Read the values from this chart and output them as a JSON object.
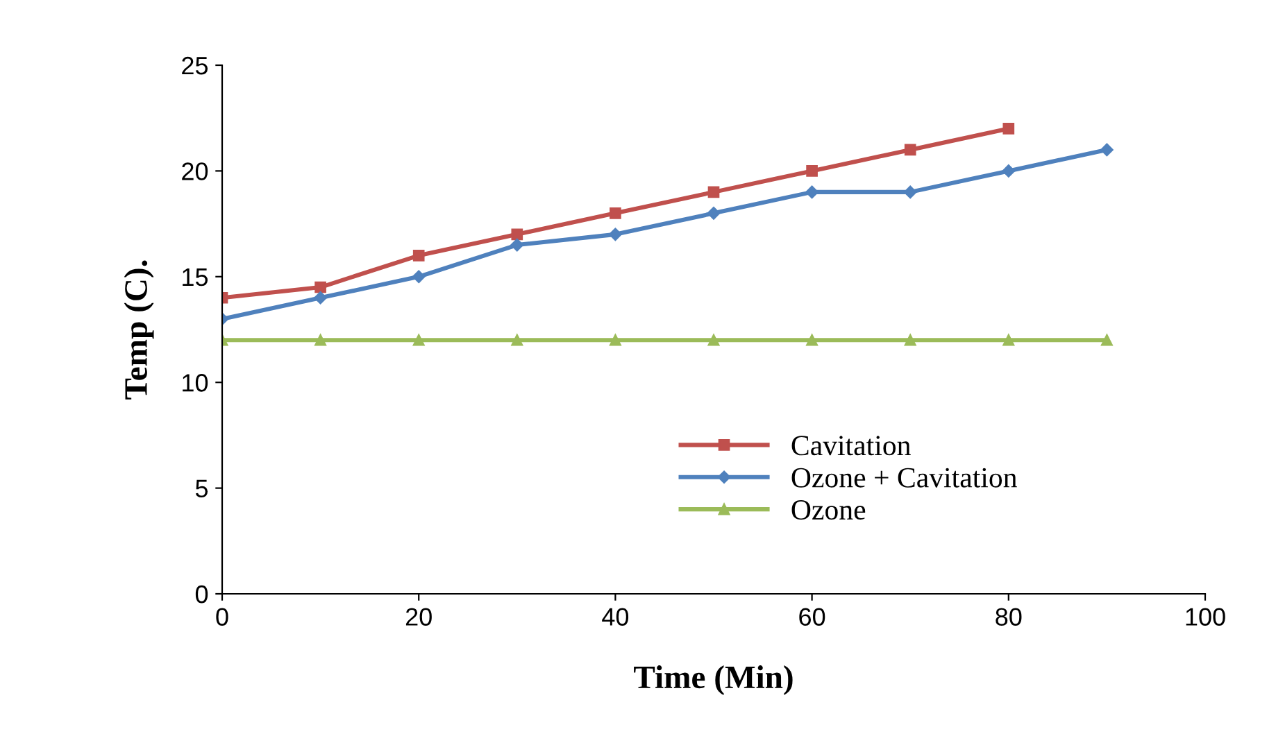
{
  "chart_data": {
    "type": "line",
    "xlabel": "Time (Min)",
    "ylabel": "Temp (C).",
    "xlim": [
      0,
      100
    ],
    "xticks": [
      0,
      20,
      40,
      60,
      80,
      100
    ],
    "ylim": [
      0,
      25
    ],
    "yticks": [
      0,
      5,
      10,
      15,
      20,
      25
    ],
    "grid": false,
    "legend": "bottom right",
    "line_style": "solid",
    "series": [
      {
        "name": "Cavitation",
        "color": "#c0504d",
        "marker": "square",
        "x": [
          0,
          10,
          20,
          30,
          40,
          50,
          60,
          70,
          80
        ],
        "values": [
          14,
          14.5,
          16,
          17,
          18,
          19,
          20,
          21,
          22
        ]
      },
      {
        "name": "Ozone + Cavitation",
        "color": "#4f81bd",
        "marker": "diamond",
        "x": [
          0,
          10,
          20,
          30,
          40,
          50,
          60,
          70,
          80,
          90
        ],
        "values": [
          13,
          14,
          15,
          16.5,
          17,
          18,
          19,
          19,
          20,
          21
        ]
      },
      {
        "name": "Ozone",
        "color": "#9bbb59",
        "marker": "triangle",
        "x": [
          0,
          10,
          20,
          30,
          40,
          50,
          60,
          70,
          80,
          90
        ],
        "values": [
          12,
          12,
          12,
          12,
          12,
          12,
          12,
          12,
          12,
          12
        ]
      }
    ]
  }
}
